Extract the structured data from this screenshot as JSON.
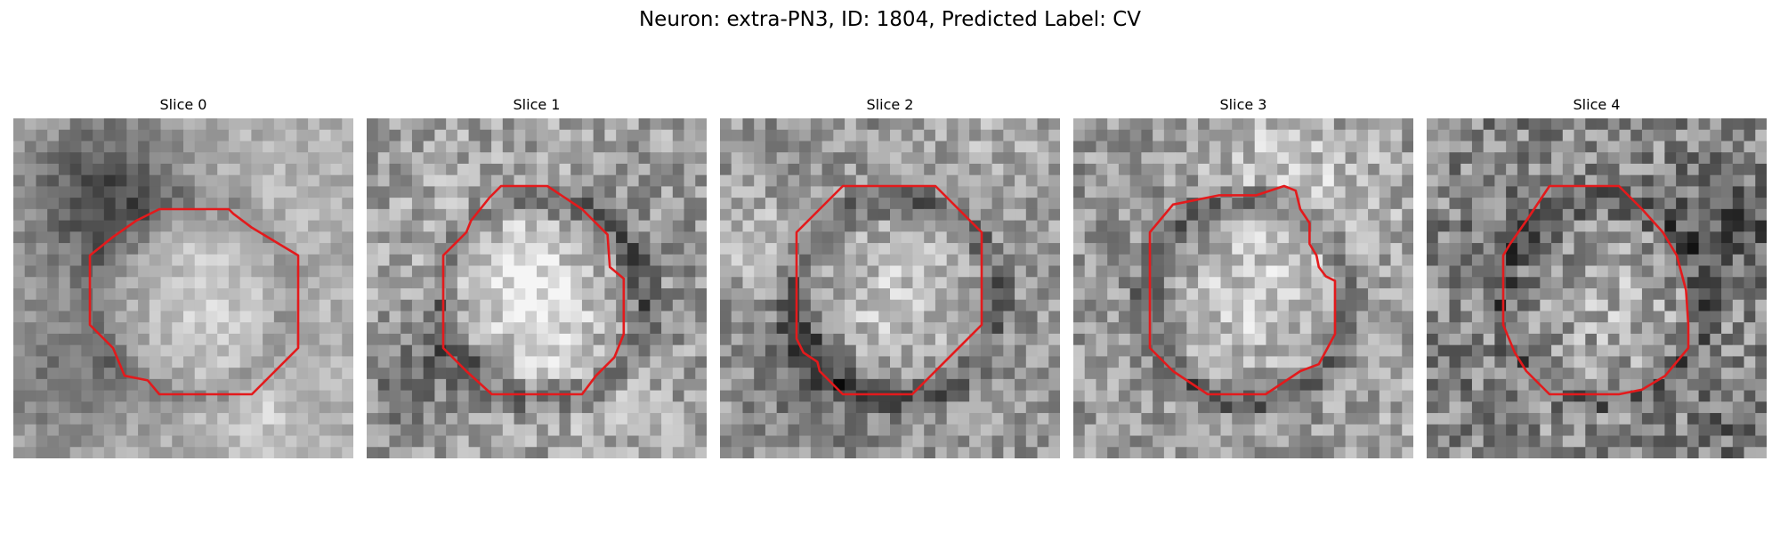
{
  "figure": {
    "title": "Neuron: extra-PN3, ID: 1804, Predicted Label: CV"
  },
  "contour_color": "#e31a1c",
  "panels": [
    {
      "title": "Slice 0",
      "seed": 11,
      "style": {
        "bright": 178,
        "contrast": 62,
        "noise": 28,
        "rimDark": 35,
        "centerLift": 40
      },
      "contour": [
        [
          5,
          2
        ],
        [
          8,
          2
        ],
        [
          8.2,
          2.2
        ],
        [
          9,
          2.8
        ],
        [
          11,
          4
        ],
        [
          11,
          8
        ],
        [
          10,
          9
        ],
        [
          9,
          10
        ],
        [
          5,
          10
        ],
        [
          4.5,
          9.4
        ],
        [
          3.5,
          9.2
        ],
        [
          3,
          8
        ],
        [
          2,
          7
        ],
        [
          2,
          4
        ],
        [
          3,
          3.2
        ],
        [
          4,
          2.5
        ]
      ]
    },
    {
      "title": "Slice 1",
      "seed": 23,
      "style": {
        "bright": 160,
        "contrast": 55,
        "noise": 48,
        "rimDark": 55,
        "centerLift": 55
      },
      "contour": [
        [
          4.5,
          1
        ],
        [
          6.5,
          1
        ],
        [
          8,
          2
        ],
        [
          9.1,
          3.1
        ],
        [
          9.2,
          4.5
        ],
        [
          9.8,
          5
        ],
        [
          9.8,
          7.4
        ],
        [
          9.4,
          8.4
        ],
        [
          8.6,
          9.2
        ],
        [
          8,
          10
        ],
        [
          6,
          10
        ],
        [
          4.1,
          10
        ],
        [
          3,
          9
        ],
        [
          2,
          8
        ],
        [
          2,
          4
        ],
        [
          3,
          3
        ],
        [
          3.2,
          2.5
        ],
        [
          4,
          1.5
        ]
      ]
    },
    {
      "title": "Slice 2",
      "seed": 37,
      "style": {
        "bright": 150,
        "contrast": 45,
        "noise": 45,
        "rimDark": 60,
        "centerLift": 60
      },
      "contour": [
        [
          4,
          1
        ],
        [
          8,
          1
        ],
        [
          10,
          3
        ],
        [
          10,
          7
        ],
        [
          8.8,
          8.2
        ],
        [
          7,
          10
        ],
        [
          4,
          10
        ],
        [
          3,
          9
        ],
        [
          2.9,
          8.6
        ],
        [
          2.3,
          8.2
        ],
        [
          2,
          7.6
        ],
        [
          2,
          3
        ],
        [
          3,
          2
        ]
      ]
    },
    {
      "title": "Slice 3",
      "seed": 51,
      "style": {
        "bright": 150,
        "contrast": 45,
        "noise": 48,
        "rimDark": 60,
        "centerLift": 62
      },
      "contour": [
        [
          5,
          1.4
        ],
        [
          6.6,
          1.4
        ],
        [
          7.8,
          1
        ],
        [
          8.3,
          1.2
        ],
        [
          8.5,
          2
        ],
        [
          8.9,
          2.6
        ],
        [
          8.9,
          3.5
        ],
        [
          9.2,
          4
        ],
        [
          9.3,
          4.5
        ],
        [
          9.6,
          4.9
        ],
        [
          10,
          5.1
        ],
        [
          10,
          7.4
        ],
        [
          9.3,
          8.7
        ],
        [
          8.5,
          9
        ],
        [
          7,
          10
        ],
        [
          4.5,
          10
        ],
        [
          3,
          9
        ],
        [
          2,
          8
        ],
        [
          2,
          3
        ],
        [
          3,
          1.8
        ]
      ]
    },
    {
      "title": "Slice 4",
      "seed": 67,
      "style": {
        "bright": 140,
        "contrast": 35,
        "noise": 58,
        "rimDark": 45,
        "centerLift": 45
      },
      "contour": [
        [
          4,
          1
        ],
        [
          7,
          1
        ],
        [
          8,
          2
        ],
        [
          8.9,
          3
        ],
        [
          9.5,
          4
        ],
        [
          9.9,
          5.5
        ],
        [
          10,
          7
        ],
        [
          10,
          8
        ],
        [
          9,
          9.2
        ],
        [
          8,
          9.8
        ],
        [
          7,
          10
        ],
        [
          4,
          10
        ],
        [
          3,
          9
        ],
        [
          2.5,
          8.2
        ],
        [
          2,
          7
        ],
        [
          2,
          4
        ],
        [
          2.3,
          3.5
        ],
        [
          3,
          2.5
        ]
      ]
    }
  ]
}
